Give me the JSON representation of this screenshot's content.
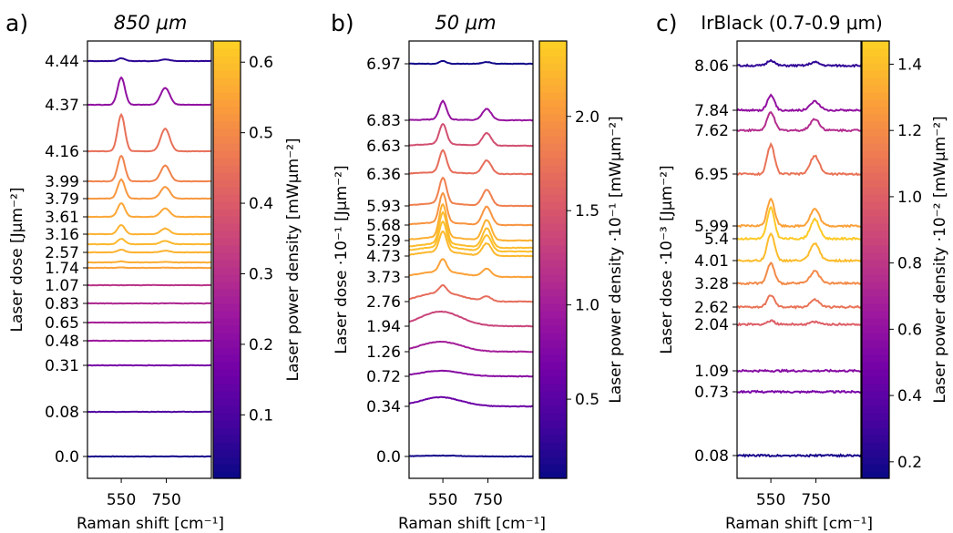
{
  "chart_data": [
    {
      "type": "line",
      "panel": "a)",
      "title": "850 μm",
      "xlabel": "Raman shift [cm⁻¹]",
      "ylabel": "Laser dose [Jμm⁻²]",
      "xticks": [
        "550",
        "750"
      ],
      "xlim": [
        400,
        950
      ],
      "peaks": [
        550,
        745
      ],
      "grid": false,
      "legend": "none",
      "traces": [
        {
          "label": "0.0",
          "power": 0.02,
          "peak": 0.0,
          "noise": 0.2
        },
        {
          "label": "0.08",
          "power": 0.1,
          "peak": 0.0,
          "noise": 0.2
        },
        {
          "label": "0.31",
          "power": 0.17,
          "peak": 0.0,
          "noise": 0.2
        },
        {
          "label": "0.48",
          "power": 0.24,
          "peak": 0.0,
          "noise": 0.2
        },
        {
          "label": "0.65",
          "power": 0.26,
          "peak": 0.0,
          "noise": 0.2
        },
        {
          "label": "0.83",
          "power": 0.28,
          "peak": 0.0,
          "noise": 0.2
        },
        {
          "label": "1.07",
          "power": 0.31,
          "peak": 0.0,
          "noise": 0.2
        },
        {
          "label": "1.74",
          "power": 0.55,
          "peak": 0.5,
          "noise": 0.2
        },
        {
          "label": "",
          "power": 0.57,
          "peak": 1.0,
          "noise": 0.2
        },
        {
          "label": "2.57",
          "power": 0.58,
          "peak": 3.0,
          "noise": 0.2
        },
        {
          "label": "",
          "power": 0.59,
          "peak": 6.0,
          "noise": 0.2
        },
        {
          "label": "3.16",
          "power": 0.58,
          "peak": 10.0,
          "noise": 0.2
        },
        {
          "label": "3.61",
          "power": 0.56,
          "peak": 15.0,
          "noise": 0.2
        },
        {
          "label": "3.79",
          "power": 0.53,
          "peak": 21.0,
          "noise": 0.2
        },
        {
          "label": "3.99",
          "power": 0.49,
          "peak": 28.0,
          "noise": 0.2
        },
        {
          "label": "4.16",
          "power": 0.45,
          "peak": 40.0,
          "noise": 0.2
        },
        {
          "label": "4.37",
          "power": 0.22,
          "peak": 30.0,
          "noise": 0.2
        },
        {
          "label": "4.44",
          "power": 0.05,
          "peak": 3.0,
          "noise": 0.2
        }
      ],
      "colorbar": {
        "label": "Laser power density [mWμm⁻²]",
        "range": [
          0.01,
          0.63
        ],
        "ticks": [
          "0.1",
          "0.2",
          "0.3",
          "0.4",
          "0.5",
          "0.6"
        ]
      }
    },
    {
      "type": "line",
      "panel": "b)",
      "title": "50 μm",
      "xlabel": "Raman shift [cm⁻¹]",
      "ylabel": "Laser dose ·10⁻¹ [Jμm⁻²]",
      "xticks": [
        "550",
        "750"
      ],
      "xlim": [
        400,
        950
      ],
      "peaks": [
        550,
        745
      ],
      "grid": false,
      "legend": "none",
      "traces": [
        {
          "label": "0.0",
          "power": 0.1,
          "broad": 1.0,
          "peak": 0.0,
          "noise": 0.25
        },
        {
          "label": "0.34",
          "power": 0.6,
          "broad": 10.0,
          "peak": 0.0,
          "noise": 0.3
        },
        {
          "label": "0.72",
          "power": 0.8,
          "broad": 6.0,
          "peak": 0.0,
          "noise": 0.3
        },
        {
          "label": "1.26",
          "power": 1.0,
          "broad": 11.0,
          "peak": 0.0,
          "noise": 0.3
        },
        {
          "label": "1.94",
          "power": 1.35,
          "broad": 16.0,
          "peak": 0.0,
          "noise": 0.3
        },
        {
          "label": "2.76",
          "power": 1.7,
          "broad": 10.0,
          "peak": 8.0,
          "noise": 0.3
        },
        {
          "label": "3.73",
          "power": 2.1,
          "broad": 6.0,
          "peak": 14.0,
          "noise": 0.3
        },
        {
          "label": "4.73",
          "power": 2.25,
          "broad": 5.0,
          "peak": 22.0,
          "noise": 0.3
        },
        {
          "label": "",
          "power": 2.3,
          "broad": 5.0,
          "peak": 28.0,
          "noise": 0.3
        },
        {
          "label": "",
          "power": 2.28,
          "broad": 5.0,
          "peak": 34.0,
          "noise": 0.3
        },
        {
          "label": "5.29",
          "power": 2.2,
          "broad": 4.0,
          "peak": 36.0,
          "noise": 0.3
        },
        {
          "label": "5.68",
          "power": 2.0,
          "broad": 3.0,
          "peak": 32.0,
          "noise": 0.3
        },
        {
          "label": "5.93",
          "power": 1.85,
          "broad": 3.0,
          "peak": 28.0,
          "noise": 0.3
        },
        {
          "label": "6.36",
          "power": 1.7,
          "broad": 2.0,
          "peak": 24.0,
          "noise": 0.3
        },
        {
          "label": "6.63",
          "power": 1.45,
          "broad": 2.0,
          "peak": 22.0,
          "noise": 0.3
        },
        {
          "label": "6.83",
          "power": 0.9,
          "broad": 1.0,
          "peak": 20.0,
          "noise": 0.3
        },
        {
          "label": "6.97",
          "power": 0.1,
          "broad": 0.0,
          "peak": 3.0,
          "noise": 0.25
        }
      ],
      "colorbar": {
        "label": "Laser power density ·10⁻¹ [mWμm⁻²]",
        "range": [
          0.08,
          2.4
        ],
        "ticks": [
          "0.5",
          "1.0",
          "1.5",
          "2.0"
        ]
      }
    },
    {
      "type": "line",
      "panel": "c)",
      "title": "IrBlack (0.7-0.9 μm)",
      "xlabel": "Raman shift [cm⁻¹]",
      "ylabel": "Laser dose ·10⁻³ [Jμm⁻²]",
      "xticks": [
        "550",
        "750"
      ],
      "xlim": [
        400,
        950
      ],
      "peaks": [
        550,
        745
      ],
      "grid": false,
      "legend": "none",
      "traces": [
        {
          "label": "0.08",
          "power": 0.18,
          "peak": 0.0,
          "noise": 1.0
        },
        {
          "label": "0.73",
          "power": 0.5,
          "peak": 0.0,
          "noise": 1.0
        },
        {
          "label": "1.09",
          "power": 0.55,
          "peak": 0.0,
          "noise": 1.0
        },
        {
          "label": "2.04",
          "power": 1.0,
          "peak": 4.0,
          "noise": 1.0
        },
        {
          "label": "2.62",
          "power": 1.1,
          "broad": 0.0,
          "peak": 13.0,
          "noise": 1.0
        },
        {
          "label": "3.28",
          "power": 1.2,
          "peak": 22.0,
          "noise": 1.0
        },
        {
          "label": "4.01",
          "power": 1.4,
          "peak": 30.0,
          "noise": 1.0
        },
        {
          "label": "5.4",
          "power": 1.45,
          "peak": 34.0,
          "noise": 1.0
        },
        {
          "label": "5.99",
          "power": 1.3,
          "peak": 30.0,
          "noise": 1.0
        },
        {
          "label": "6.95",
          "power": 1.1,
          "peak": 32.0,
          "noise": 1.0
        },
        {
          "label": "7.62",
          "power": 0.75,
          "peak": 20.0,
          "noise": 1.0
        },
        {
          "label": "7.84",
          "power": 0.6,
          "peak": 16.0,
          "noise": 1.0
        },
        {
          "label": "8.06",
          "power": 0.25,
          "peak": 6.0,
          "noise": 1.0
        }
      ],
      "colorbar": {
        "label": "Laser power density ·10⁻² [mWμm⁻²]",
        "range": [
          0.15,
          1.47
        ],
        "ticks": [
          "0.2",
          "0.4",
          "0.6",
          "0.8",
          "1.0",
          "1.2",
          "1.4"
        ]
      }
    }
  ]
}
